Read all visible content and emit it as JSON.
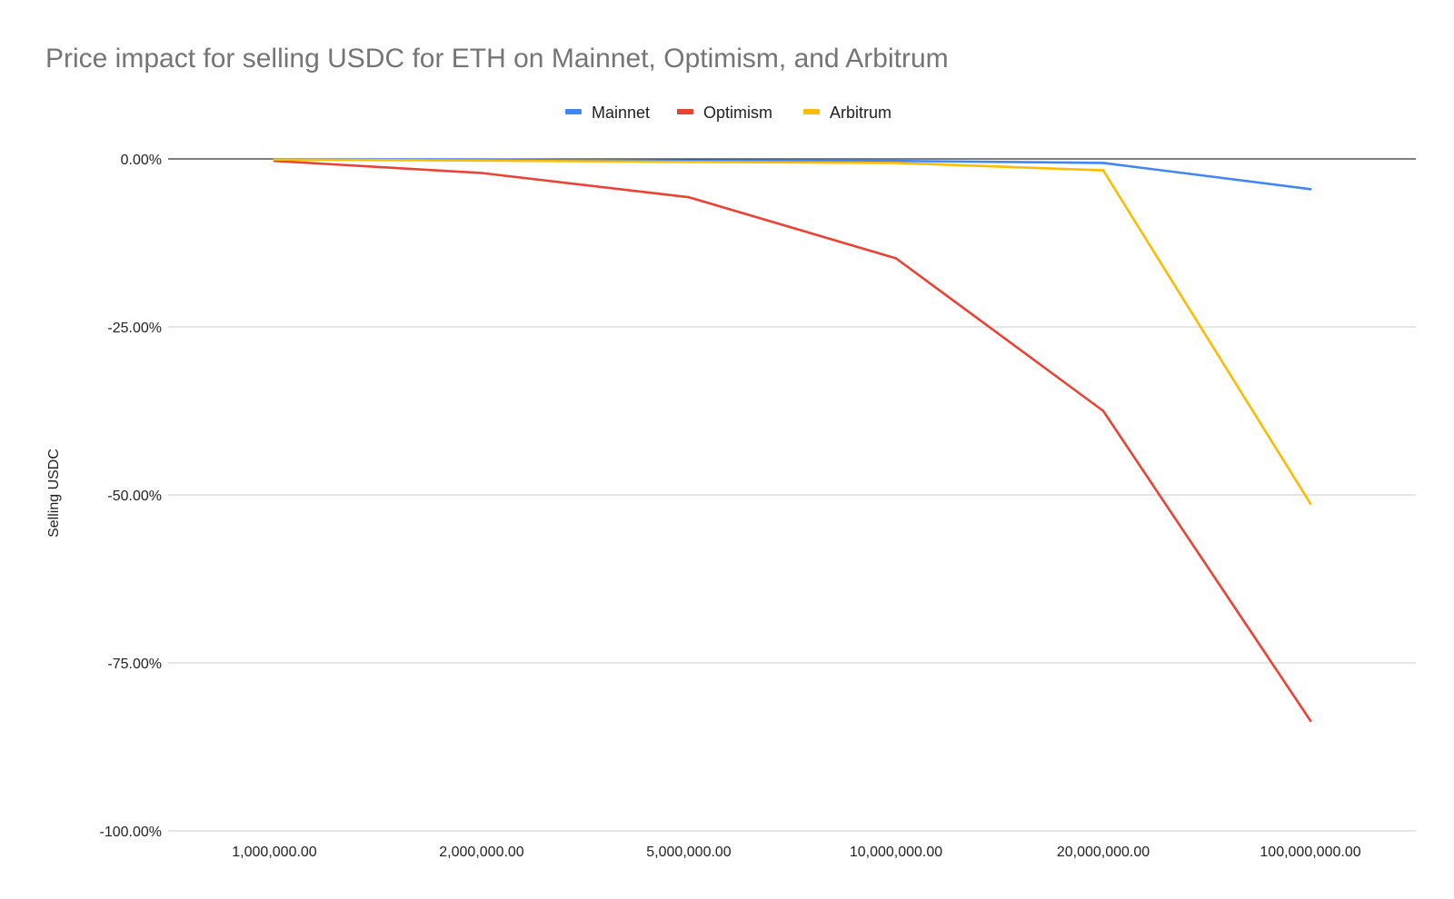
{
  "chart_data": {
    "type": "line",
    "title": "Price impact for selling USDC for ETH on Mainnet, Optimism, and Arbitrum",
    "xlabel": "",
    "ylabel": "Selling USDC",
    "categories": [
      "1,000,000.00",
      "2,000,000.00",
      "5,000,000.00",
      "10,000,000.00",
      "20,000,000.00",
      "100,000,000.00"
    ],
    "ylim": [
      -100,
      0
    ],
    "yticks": [
      {
        "value": 0,
        "label": "0.00%"
      },
      {
        "value": -25,
        "label": "-25.00%"
      },
      {
        "value": -50,
        "label": "-50.00%"
      },
      {
        "value": -75,
        "label": "-75.00%"
      },
      {
        "value": -100,
        "label": "-100.00%"
      }
    ],
    "grid": true,
    "legend_position": "top-center",
    "series": [
      {
        "name": "Mainnet",
        "color": "#4285f4",
        "values": [
          -0.05,
          -0.1,
          -0.25,
          -0.3,
          -0.6,
          -4.5
        ]
      },
      {
        "name": "Optimism",
        "color": "#ea4335",
        "values": [
          -0.3,
          -2.1,
          -5.7,
          -14.8,
          -37.5,
          -83.6
        ]
      },
      {
        "name": "Arbitrum",
        "color": "#fbbc04",
        "values": [
          -0.1,
          -0.25,
          -0.45,
          -0.6,
          -1.7,
          -51.3
        ]
      }
    ]
  }
}
